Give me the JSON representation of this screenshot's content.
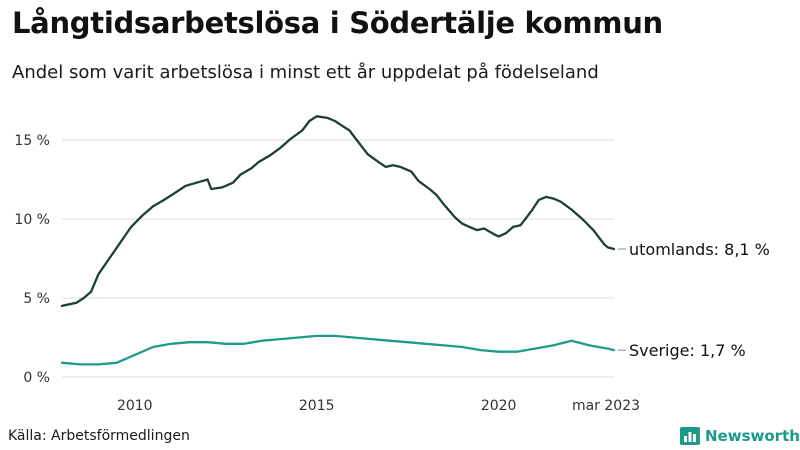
{
  "header": {
    "title": "Långtidsarbetslösa i Södertälje kommun",
    "subtitle": "Andel som varit arbetslösa i minst ett år uppdelat på födelseland"
  },
  "footer": {
    "source": "Källa: Arbetsförmedlingen",
    "brand": "Newsworthy"
  },
  "colors": {
    "utomlands": "#1d3f36",
    "sverige": "#1f9b8c",
    "grid": "#dddddd",
    "brand": "#1b9a8a"
  },
  "icons": {
    "brand": "bar-chart-logo-icon"
  },
  "chart_data": {
    "type": "line",
    "title": "Långtidsarbetslösa i Södertälje kommun",
    "subtitle": "Andel som varit arbetslösa i minst ett år uppdelat på födelseland",
    "xlabel": "",
    "ylabel": "",
    "ylim": [
      0,
      16.5
    ],
    "xlim": [
      2008.0,
      2023.17
    ],
    "y_ticks": [
      0,
      5,
      10,
      15
    ],
    "y_tick_labels": [
      "0 %",
      "5 %",
      "10 %",
      "15 %"
    ],
    "x_ticks": [
      2010,
      2015,
      2020,
      2023.17
    ],
    "x_tick_labels": [
      "2010",
      "2015",
      "2020",
      "mar 2023"
    ],
    "grid": true,
    "legend": "end-of-line labels",
    "series": [
      {
        "key": "utomlands",
        "end_label": "utomlands: 8,1 %",
        "x": [
          2008.0,
          2008.2,
          2008.4,
          2008.6,
          2008.8,
          2009.0,
          2009.3,
          2009.6,
          2009.9,
          2010.2,
          2010.5,
          2010.8,
          2011.0,
          2011.2,
          2011.4,
          2011.7,
          2012.0,
          2012.1,
          2012.4,
          2012.7,
          2012.9,
          2013.2,
          2013.4,
          2013.7,
          2014.0,
          2014.3,
          2014.6,
          2014.8,
          2015.0,
          2015.3,
          2015.5,
          2015.7,
          2015.9,
          2016.1,
          2016.4,
          2016.7,
          2016.9,
          2017.1,
          2017.3,
          2017.6,
          2017.8,
          2018.1,
          2018.3,
          2018.5,
          2018.8,
          2019.0,
          2019.2,
          2019.4,
          2019.6,
          2019.9,
          2020.0,
          2020.2,
          2020.4,
          2020.6,
          2020.9,
          2021.1,
          2021.3,
          2021.5,
          2021.7,
          2022.0,
          2022.3,
          2022.6,
          2022.9,
          2023.0,
          2023.17
        ],
        "y": [
          4.5,
          4.6,
          4.7,
          5.0,
          5.4,
          6.5,
          7.5,
          8.5,
          9.5,
          10.2,
          10.8,
          11.2,
          11.5,
          11.8,
          12.1,
          12.3,
          12.5,
          11.9,
          12.0,
          12.3,
          12.8,
          13.2,
          13.6,
          14.0,
          14.5,
          15.1,
          15.6,
          16.2,
          16.5,
          16.4,
          16.2,
          15.9,
          15.6,
          15.0,
          14.1,
          13.6,
          13.3,
          13.4,
          13.3,
          13.0,
          12.4,
          11.9,
          11.5,
          10.9,
          10.1,
          9.7,
          9.5,
          9.3,
          9.4,
          9.0,
          8.9,
          9.1,
          9.5,
          9.6,
          10.5,
          11.2,
          11.4,
          11.3,
          11.1,
          10.6,
          10.0,
          9.3,
          8.4,
          8.2,
          8.1
        ]
      },
      {
        "key": "sverige",
        "end_label": "Sverige: 1,7 %",
        "x": [
          2008.0,
          2008.5,
          2009.0,
          2009.5,
          2010.0,
          2010.5,
          2011.0,
          2011.5,
          2012.0,
          2012.5,
          2013.0,
          2013.5,
          2014.0,
          2014.5,
          2015.0,
          2015.5,
          2016.0,
          2016.5,
          2017.0,
          2017.5,
          2018.0,
          2018.5,
          2019.0,
          2019.5,
          2020.0,
          2020.5,
          2021.0,
          2021.5,
          2022.0,
          2022.5,
          2023.0,
          2023.17
        ],
        "y": [
          0.9,
          0.8,
          0.8,
          0.9,
          1.4,
          1.9,
          2.1,
          2.2,
          2.2,
          2.1,
          2.1,
          2.3,
          2.4,
          2.5,
          2.6,
          2.6,
          2.5,
          2.4,
          2.3,
          2.2,
          2.1,
          2.0,
          1.9,
          1.7,
          1.6,
          1.6,
          1.8,
          2.0,
          2.3,
          2.0,
          1.8,
          1.7
        ]
      }
    ]
  }
}
